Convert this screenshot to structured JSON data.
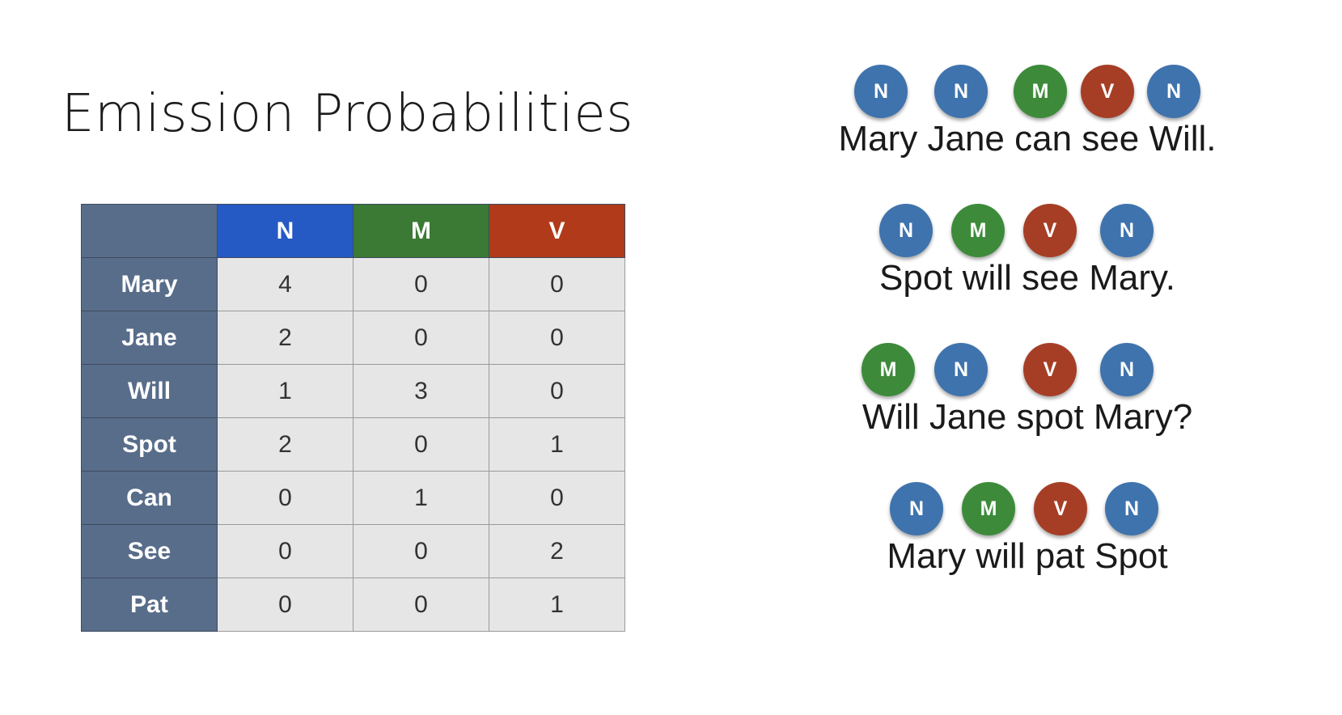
{
  "title": "Emission Probabilities",
  "table": {
    "columns": [
      "N",
      "M",
      "V"
    ],
    "rows": [
      {
        "word": "Mary",
        "values": [
          "4",
          "0",
          "0"
        ]
      },
      {
        "word": "Jane",
        "values": [
          "2",
          "0",
          "0"
        ]
      },
      {
        "word": "Will",
        "values": [
          "1",
          "3",
          "0"
        ]
      },
      {
        "word": "Spot",
        "values": [
          "2",
          "0",
          "1"
        ]
      },
      {
        "word": "Can",
        "values": [
          "0",
          "1",
          "0"
        ]
      },
      {
        "word": "See",
        "values": [
          "0",
          "0",
          "2"
        ]
      },
      {
        "word": "Pat",
        "values": [
          "0",
          "0",
          "1"
        ]
      }
    ]
  },
  "colors": {
    "N": "#3f73ad",
    "M": "#3d8b3a",
    "V": "#a63e26",
    "header_N": "#2559c4",
    "header_M": "#3a7a34",
    "header_V": "#b13a1a",
    "row_label": "#586d8a"
  },
  "sentences": [
    {
      "text": "Mary Jane can see Will.",
      "tags": [
        "N",
        "N",
        "M",
        "V",
        "N"
      ]
    },
    {
      "text": "Spot will see Mary.",
      "tags": [
        "N",
        "M",
        "V",
        "N"
      ]
    },
    {
      "text": "Will Jane spot Mary?",
      "tags": [
        "M",
        "N",
        "V",
        "N"
      ]
    },
    {
      "text": "Mary will pat Spot",
      "tags": [
        "N",
        "M",
        "V",
        "N"
      ]
    }
  ]
}
